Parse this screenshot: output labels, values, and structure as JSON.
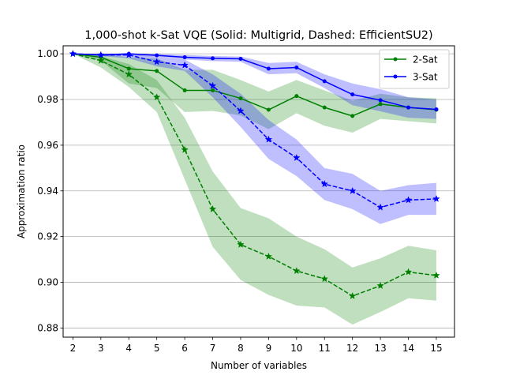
{
  "chart_data": {
    "type": "line",
    "title": "1,000-shot k-Sat VQE (Solid: Multigrid, Dashed: EfficientSU2)",
    "xlabel": "Number of variables",
    "ylabel": "Approximation ratio",
    "xlim": [
      1.65,
      15.65
    ],
    "ylim": [
      0.876,
      1.0035
    ],
    "x_ticks": [
      2,
      3,
      4,
      5,
      6,
      7,
      8,
      9,
      10,
      11,
      12,
      13,
      14,
      15
    ],
    "x_tick_labels": [
      "2",
      "3",
      "4",
      "5",
      "6",
      "7",
      "8",
      "9",
      "10",
      "11",
      "12",
      "13",
      "14",
      "15"
    ],
    "y_ticks": [
      0.88,
      0.9,
      0.92,
      0.94,
      0.96,
      0.98,
      1.0
    ],
    "y_tick_labels": [
      "0.88",
      "0.90",
      "0.92",
      "0.94",
      "0.96",
      "0.98",
      "1.00"
    ],
    "grid": "horizontal",
    "legend_position": "top-right",
    "legend": [
      {
        "label": "2-Sat",
        "color": "#008000"
      },
      {
        "label": "3-Sat",
        "color": "#0000ff"
      }
    ],
    "x": [
      2,
      3,
      4,
      5,
      6,
      7,
      8,
      9,
      10,
      11,
      12,
      13,
      14,
      15
    ],
    "series": [
      {
        "name": "2-Sat Multigrid",
        "k": "2-Sat",
        "method": "Multigrid",
        "style": "solid",
        "marker": "dot",
        "color": "#008000",
        "band_color": "#008000",
        "values": [
          1.0,
          0.9985,
          0.9935,
          0.9925,
          0.984,
          0.984,
          0.9805,
          0.9755,
          0.9815,
          0.9765,
          0.9728,
          0.978,
          0.9765,
          0.9755
        ],
        "lower": [
          1.0,
          0.997,
          0.987,
          0.985,
          0.9745,
          0.975,
          0.973,
          0.967,
          0.974,
          0.9685,
          0.9655,
          0.9715,
          0.9705,
          0.9695
        ],
        "upper": [
          1.0,
          1.0,
          0.9985,
          0.998,
          0.993,
          0.993,
          0.9885,
          0.9835,
          0.9885,
          0.984,
          0.9795,
          0.9825,
          0.981,
          0.9805
        ]
      },
      {
        "name": "3-Sat Multigrid",
        "k": "3-Sat",
        "method": "Multigrid",
        "style": "solid",
        "marker": "dot",
        "color": "#0000ff",
        "band_color": "#0000ff",
        "values": [
          1.0,
          0.9995,
          1.0,
          0.9993,
          0.9985,
          0.998,
          0.9978,
          0.9935,
          0.994,
          0.988,
          0.9822,
          0.9797,
          0.9765,
          0.9757
        ],
        "lower": [
          1.0,
          0.999,
          0.9995,
          0.9985,
          0.9975,
          0.9968,
          0.9965,
          0.991,
          0.9915,
          0.985,
          0.9775,
          0.9748,
          0.972,
          0.9715
        ],
        "upper": [
          1.0,
          1.0,
          1.0,
          1.0,
          0.9995,
          0.999,
          0.9988,
          0.996,
          0.9965,
          0.991,
          0.987,
          0.9845,
          0.981,
          0.98
        ]
      },
      {
        "name": "2-Sat EfficientSU2",
        "k": "2-Sat",
        "method": "EfficientSU2",
        "style": "dashed",
        "marker": "star",
        "color": "#008000",
        "band_color": "#008000",
        "values": [
          1.0,
          0.997,
          0.991,
          0.981,
          0.958,
          0.932,
          0.9165,
          0.9113,
          0.905,
          0.9015,
          0.894,
          0.8985,
          0.9045,
          0.903
        ],
        "lower": [
          1.0,
          0.994,
          0.9855,
          0.9745,
          0.945,
          0.9155,
          0.901,
          0.8945,
          0.8898,
          0.889,
          0.8815,
          0.887,
          0.893,
          0.892
        ],
        "upper": [
          1.0,
          0.999,
          0.9955,
          0.9885,
          0.972,
          0.9485,
          0.9325,
          0.928,
          0.92,
          0.9145,
          0.9065,
          0.9105,
          0.916,
          0.914
        ]
      },
      {
        "name": "3-Sat EfficientSU2",
        "k": "3-Sat",
        "method": "EfficientSU2",
        "style": "dashed",
        "marker": "star",
        "color": "#0000ff",
        "band_color": "#0000ff",
        "values": [
          1.0,
          0.9995,
          0.9995,
          0.9965,
          0.995,
          0.986,
          0.975,
          0.9625,
          0.9545,
          0.943,
          0.94,
          0.9328,
          0.936,
          0.9365
        ],
        "lower": [
          1.0,
          0.999,
          0.998,
          0.9945,
          0.9925,
          0.981,
          0.968,
          0.954,
          0.9465,
          0.936,
          0.932,
          0.9255,
          0.9295,
          0.9295
        ],
        "upper": [
          1.0,
          1.0,
          1.0,
          0.9985,
          0.9975,
          0.991,
          0.9825,
          0.971,
          0.9625,
          0.95,
          0.9475,
          0.94,
          0.9425,
          0.9435
        ]
      }
    ]
  }
}
